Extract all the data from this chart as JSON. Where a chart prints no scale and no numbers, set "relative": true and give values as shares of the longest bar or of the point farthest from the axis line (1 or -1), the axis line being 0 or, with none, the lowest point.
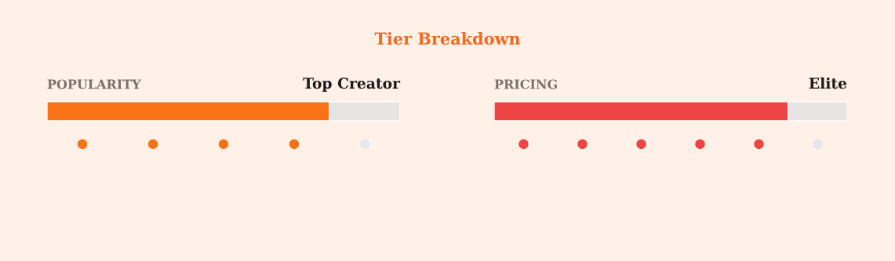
{
  "chart_data": [
    {
      "type": "bar",
      "title": "Tier Breakdown",
      "subtitle": "POPULARITY",
      "annotations": [
        "Top Creator"
      ],
      "orientation": "horizontal",
      "stacked": true,
      "relative": true,
      "categories": [
        null
      ],
      "series": [
        {
          "color": "#f97316",
          "values": [
            0.8
          ]
        },
        {
          "color": "#e7e5e4",
          "values": [
            0.2
          ]
        }
      ]
    },
    {
      "type": "bar",
      "subtitle": "PRICING",
      "annotations": [
        "Elite"
      ],
      "orientation": "horizontal",
      "stacked": true,
      "relative": true,
      "categories": [
        null
      ],
      "series": [
        {
          "color": "#ef4444",
          "values": [
            0.833
          ]
        },
        {
          "color": "#e7e5e4",
          "values": [
            0.167
          ]
        }
      ]
    }
  ]
}
